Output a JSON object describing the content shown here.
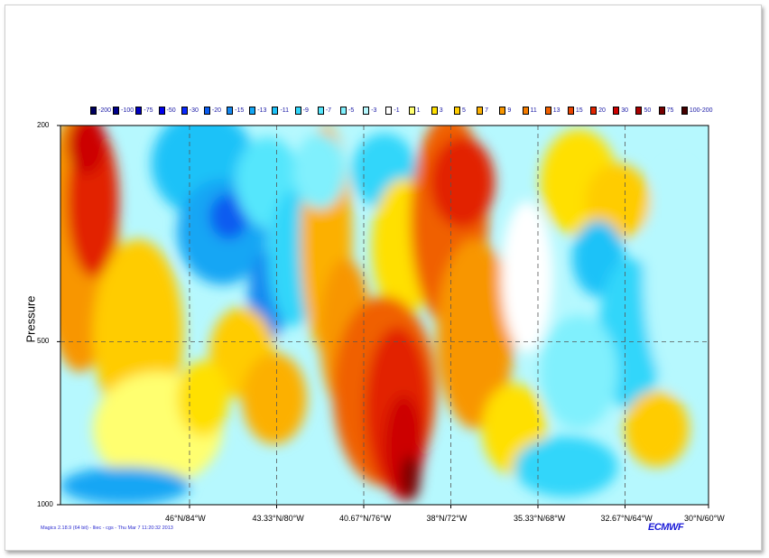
{
  "chart_data": {
    "type": "heatmap",
    "title": "",
    "ylabel": "Pressure",
    "xlabel": "",
    "y_ticks": [
      "200",
      "500",
      "1000"
    ],
    "x_ticks": [
      "46°N/84°W",
      "43.33°N/80°W",
      "40.67°N/76°W",
      "38°N/72°W",
      "35.33°N/68°W",
      "32.67°N/64°W",
      "30°N/60°W"
    ],
    "grid": true,
    "legend": {
      "placement": "top",
      "entries": [
        {
          "label": "-200",
          "color": "#000060"
        },
        {
          "label": "-100",
          "color": "#00008a"
        },
        {
          "label": "-75",
          "color": "#0000c0"
        },
        {
          "label": "-50",
          "color": "#0000ee"
        },
        {
          "label": "-30",
          "color": "#0a28ff"
        },
        {
          "label": "-20",
          "color": "#0a5cf0"
        },
        {
          "label": "-15",
          "color": "#1488f0"
        },
        {
          "label": "-13",
          "color": "#14a6f4"
        },
        {
          "label": "-11",
          "color": "#1ec2f8"
        },
        {
          "label": "-9",
          "color": "#32d6fa"
        },
        {
          "label": "-7",
          "color": "#55e6fc"
        },
        {
          "label": "-5",
          "color": "#80f0fd"
        },
        {
          "label": "-3",
          "color": "#b6f8fe"
        },
        {
          "label": "-1",
          "color": "#ffffff"
        },
        {
          "label": "1",
          "color": "#ffff70"
        },
        {
          "label": "3",
          "color": "#ffe000"
        },
        {
          "label": "5",
          "color": "#ffcc00"
        },
        {
          "label": "7",
          "color": "#fcb000"
        },
        {
          "label": "9",
          "color": "#f89600"
        },
        {
          "label": "11",
          "color": "#f47c00"
        },
        {
          "label": "13",
          "color": "#f06000"
        },
        {
          "label": "15",
          "color": "#ea4400"
        },
        {
          "label": "20",
          "color": "#e22400"
        },
        {
          "label": "30",
          "color": "#cc0000"
        },
        {
          "label": "50",
          "color": "#a80000"
        },
        {
          "label": "75",
          "color": "#780000"
        },
        {
          "label": "100-200",
          "color": "#460000"
        }
      ]
    }
  },
  "footer": {
    "meta_text": "Magics 2.18.9 (64 bit) - lliec - cgs - Thu Mar  7 11:20:32 2013",
    "logo_text": "ECMWF"
  }
}
